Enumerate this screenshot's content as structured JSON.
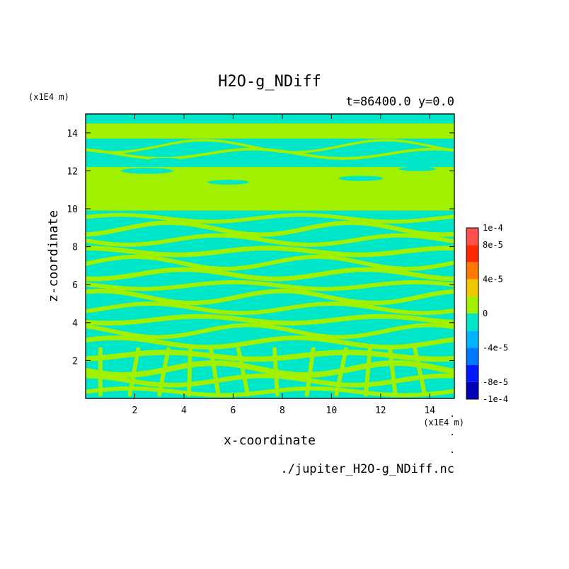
{
  "chart_data": {
    "type": "heatmap",
    "title": "H2O-g_NDiff",
    "subtitle": "t=86400.0 y=0.0",
    "xlabel": "x-coordinate",
    "ylabel": "z-coordinate",
    "x_unit": "(x1E4 m)",
    "y_unit": "(x1E4 m)",
    "xlim": [
      0.0,
      15.0
    ],
    "ylim": [
      0.0,
      15.0
    ],
    "x_ticks": [
      2,
      4,
      6,
      8,
      10,
      12,
      14
    ],
    "y_ticks": [
      2,
      4,
      6,
      8,
      10,
      12,
      14
    ],
    "source_file": "./jupiter_H2O-g_NDiff.nc",
    "colorbar": {
      "levels": [
        -0.0001,
        -8e-05,
        -6e-05,
        -4e-05,
        -2e-05,
        0,
        2e-05,
        4e-05,
        6e-05,
        8e-05,
        0.0001
      ],
      "colors": [
        "#0000b4",
        "#0018ff",
        "#0078ff",
        "#00b4ff",
        "#00e6c8",
        "#a0f000",
        "#f0c800",
        "#ff7800",
        "#ff2800",
        "#ff5050"
      ],
      "labels": [
        {
          "value": 0.0001,
          "text": "1e-4"
        },
        {
          "value": 8e-05,
          "text": "8e-5"
        },
        {
          "value": 4e-05,
          "text": "4e-5"
        },
        {
          "value": 0,
          "text": "0"
        },
        {
          "value": -4e-05,
          "text": "-4e-5"
        },
        {
          "value": -8e-05,
          "text": "-8e-5"
        },
        {
          "value": -0.0001,
          "text": "-1e-4"
        }
      ]
    },
    "field_levels": {
      "low_color": "#00e6c8",
      "high_color": "#a0f000",
      "low_range": [
        -2e-05,
        0
      ],
      "high_range": [
        0,
        2e-05
      ]
    }
  }
}
